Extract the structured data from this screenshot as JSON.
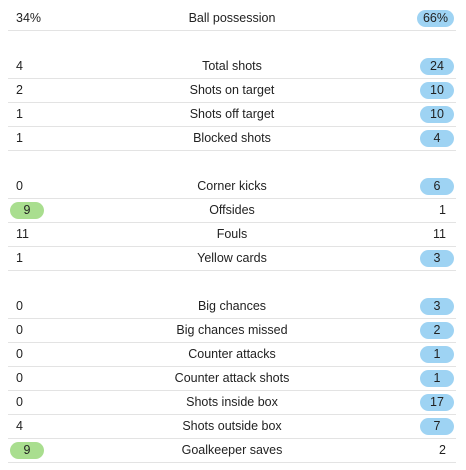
{
  "stats": [
    {
      "label": "Ball possession",
      "home": "34%",
      "away": "66%",
      "highlight": "away"
    },
    {
      "label": "Total shots",
      "home": "4",
      "away": "24",
      "highlight": "away"
    },
    {
      "label": "Shots on target",
      "home": "2",
      "away": "10",
      "highlight": "away"
    },
    {
      "label": "Shots off target",
      "home": "1",
      "away": "10",
      "highlight": "away"
    },
    {
      "label": "Blocked shots",
      "home": "1",
      "away": "4",
      "highlight": "away"
    },
    {
      "label": "Corner kicks",
      "home": "0",
      "away": "6",
      "highlight": "away"
    },
    {
      "label": "Offsides",
      "home": "9",
      "away": "1",
      "highlight": "home"
    },
    {
      "label": "Fouls",
      "home": "11",
      "away": "11",
      "highlight": "none"
    },
    {
      "label": "Yellow cards",
      "home": "1",
      "away": "3",
      "highlight": "away"
    },
    {
      "label": "Big chances",
      "home": "0",
      "away": "3",
      "highlight": "away"
    },
    {
      "label": "Big chances missed",
      "home": "0",
      "away": "2",
      "highlight": "away"
    },
    {
      "label": "Counter attacks",
      "home": "0",
      "away": "1",
      "highlight": "away"
    },
    {
      "label": "Counter attack shots",
      "home": "0",
      "away": "1",
      "highlight": "away"
    },
    {
      "label": "Shots inside box",
      "home": "0",
      "away": "17",
      "highlight": "away"
    },
    {
      "label": "Shots outside box",
      "home": "4",
      "away": "7",
      "highlight": "away"
    },
    {
      "label": "Goalkeeper saves",
      "home": "9",
      "away": "2",
      "highlight": "home"
    }
  ],
  "colors": {
    "away_highlight": "#9ed3f3",
    "home_highlight": "#a9de8f",
    "divider": "#e3e3e3"
  }
}
